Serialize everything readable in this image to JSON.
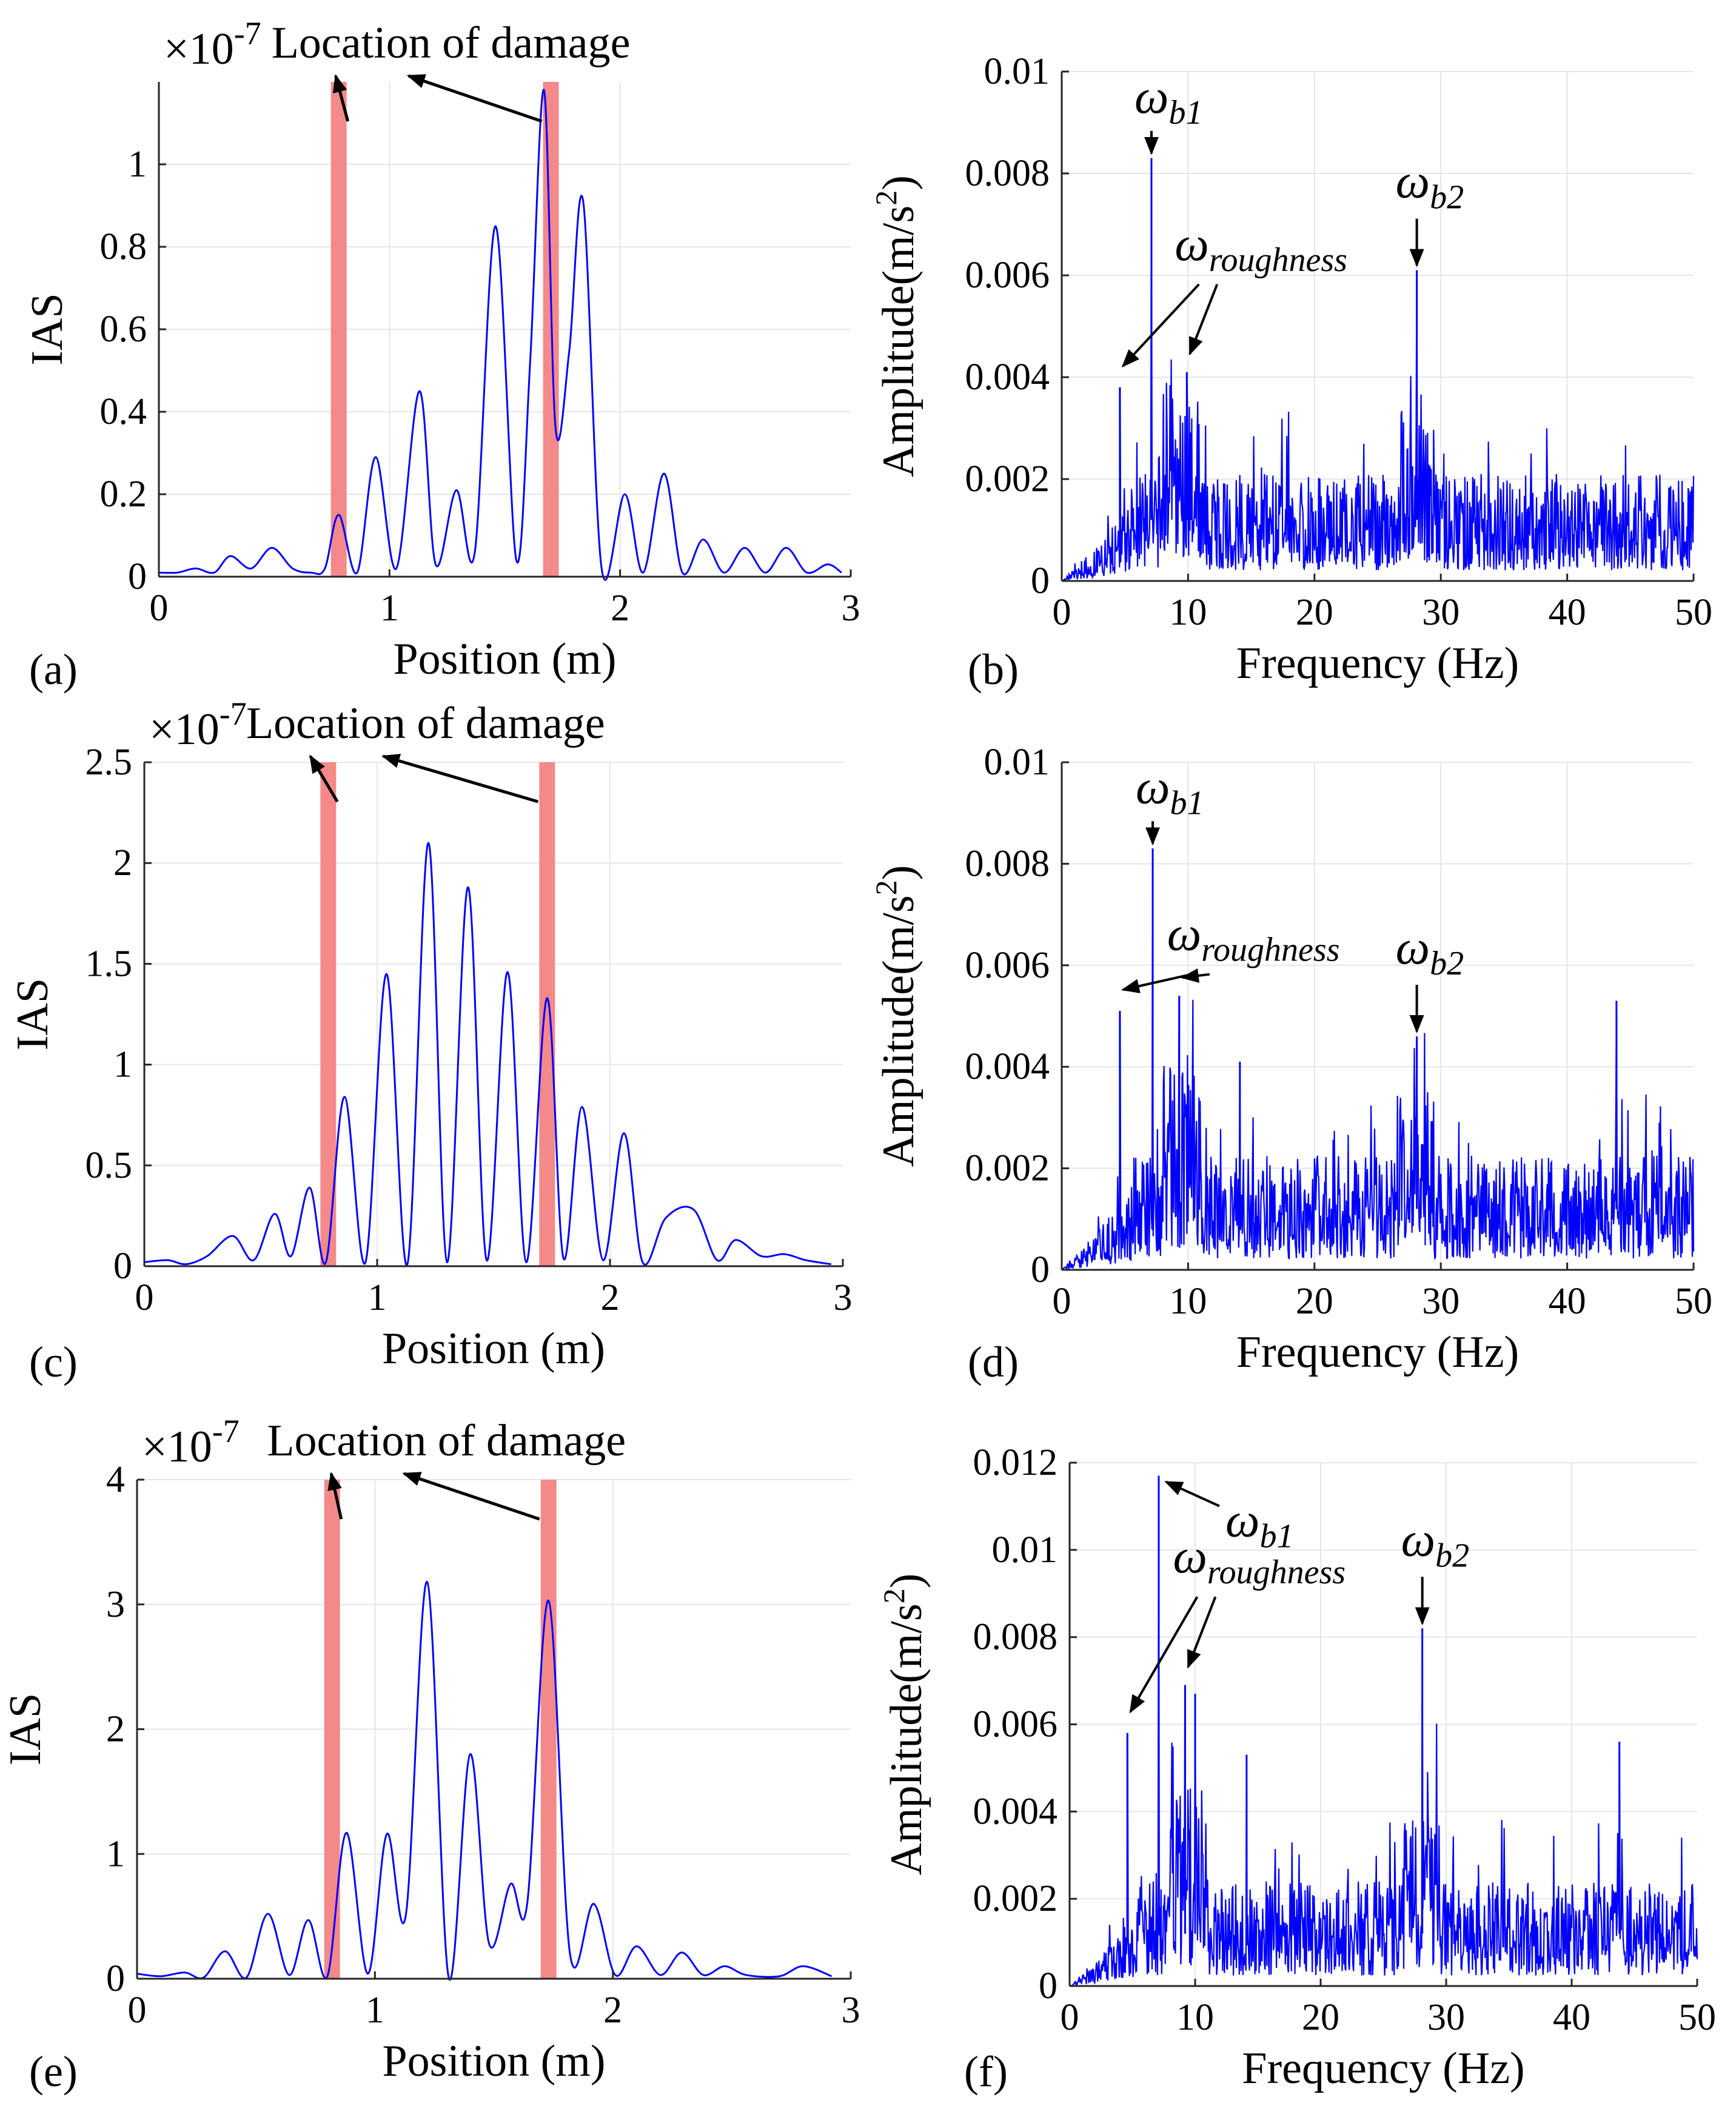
{
  "figure": {
    "panels": [
      "(a)",
      "(b)",
      "(c)",
      "(d)",
      "(e)",
      "(f)"
    ]
  },
  "chart_data": [
    {
      "panel": "(a)",
      "type": "line",
      "xlabel": "Position (m)",
      "ylabel": "IAS",
      "exponent_label": "×10",
      "exponent_power": "-7",
      "annotation": "Location of damage",
      "xlim": [
        0,
        3
      ],
      "ylim": [
        0,
        1.2
      ],
      "xticks": [
        "0",
        "1",
        "2",
        "3"
      ],
      "yticks": [
        "0",
        "0.2",
        "0.4",
        "0.6",
        "0.8",
        "1"
      ],
      "ytick_values": [
        0,
        0.2,
        0.4,
        0.6,
        0.8,
        1.0
      ],
      "damage_locations": [
        0.78,
        1.7
      ],
      "series_color": "#0000ff",
      "damage_color": "#f4898a",
      "x": [
        0,
        0.08,
        0.16,
        0.24,
        0.31,
        0.4,
        0.49,
        0.58,
        0.66,
        0.72,
        0.78,
        0.86,
        0.94,
        1.03,
        1.13,
        1.2,
        1.29,
        1.37,
        1.46,
        1.55,
        1.61,
        1.67,
        1.72,
        1.78,
        1.84,
        1.92,
        2.02,
        2.1,
        2.19,
        2.27,
        2.36,
        2.45,
        2.54,
        2.63,
        2.72,
        2.81,
        2.9,
        2.96
      ],
      "values": [
        0.01,
        0.01,
        0.02,
        0.01,
        0.05,
        0.02,
        0.07,
        0.02,
        0.01,
        0.02,
        0.15,
        0.01,
        0.29,
        0.02,
        0.45,
        0.03,
        0.21,
        0.06,
        0.85,
        0.04,
        0.52,
        1.18,
        0.36,
        0.55,
        0.91,
        0.02,
        0.2,
        0.01,
        0.25,
        0.01,
        0.09,
        0.01,
        0.07,
        0.01,
        0.07,
        0.01,
        0.03,
        0.01
      ]
    },
    {
      "panel": "(b)",
      "type": "line",
      "xlabel": "Frequency (Hz)",
      "ylabel": "Amplitude(m/s",
      "ylabel_power": "2",
      "ylabel_end": ")",
      "xlim": [
        0,
        50
      ],
      "ylim": [
        0,
        0.01
      ],
      "xticks": [
        "0",
        "10",
        "20",
        "30",
        "40",
        "50"
      ],
      "yticks": [
        "0",
        "0.002",
        "0.004",
        "0.006",
        "0.008",
        "0.01"
      ],
      "ytick_values": [
        0,
        0.002,
        0.004,
        0.006,
        0.008,
        0.01
      ],
      "series_color": "#0000ff",
      "peaks": [
        {
          "x": 4.6,
          "value": 0.0038
        },
        {
          "x": 7.1,
          "value": 0.0083
        },
        {
          "x": 9.9,
          "value": 0.0041
        },
        {
          "x": 28.1,
          "value": 0.0061
        }
      ],
      "baseline_level": 0.0014,
      "annotations": {
        "b1": {
          "symbol": "ω",
          "sub": "b1",
          "x": 7.1
        },
        "b2": {
          "symbol": "ω",
          "sub": "b2",
          "x": 28.1
        },
        "rough": {
          "symbol": "ω",
          "sub": "roughness",
          "targets": [
            4.6,
            9.9
          ]
        }
      }
    },
    {
      "panel": "(c)",
      "type": "line",
      "xlabel": "Position (m)",
      "ylabel": "IAS",
      "exponent_label": "×10",
      "exponent_power": "-7",
      "annotation": "Location of damage",
      "xlim": [
        0,
        3
      ],
      "ylim": [
        0,
        2.5
      ],
      "xticks": [
        "0",
        "1",
        "2",
        "3"
      ],
      "yticks": [
        "0",
        "0.5",
        "1",
        "1.5",
        "2",
        "2.5"
      ],
      "ytick_values": [
        0,
        0.5,
        1.0,
        1.5,
        2.0,
        2.5
      ],
      "damage_locations": [
        0.79,
        1.73
      ],
      "series_color": "#0000ff",
      "damage_color": "#f4898a",
      "x": [
        0,
        0.1,
        0.18,
        0.27,
        0.38,
        0.47,
        0.56,
        0.63,
        0.71,
        0.78,
        0.86,
        0.95,
        1.04,
        1.13,
        1.22,
        1.3,
        1.39,
        1.47,
        1.56,
        1.64,
        1.73,
        1.8,
        1.88,
        1.97,
        2.06,
        2.14,
        2.24,
        2.36,
        2.46,
        2.54,
        2.65,
        2.75,
        2.84,
        2.95
      ],
      "values": [
        0.02,
        0.03,
        0.01,
        0.05,
        0.15,
        0.03,
        0.26,
        0.05,
        0.39,
        0.02,
        0.84,
        0.02,
        1.45,
        0.01,
        2.1,
        0.02,
        1.88,
        0.03,
        1.46,
        0.02,
        1.33,
        0.04,
        0.79,
        0.03,
        0.66,
        0.02,
        0.24,
        0.28,
        0.03,
        0.13,
        0.05,
        0.06,
        0.03,
        0.01
      ]
    },
    {
      "panel": "(d)",
      "type": "line",
      "xlabel": "Frequency (Hz)",
      "ylabel": "Amplitude(m/s",
      "ylabel_power": "2",
      "ylabel_end": ")",
      "xlim": [
        0,
        50
      ],
      "ylim": [
        0,
        0.01
      ],
      "xticks": [
        "0",
        "10",
        "20",
        "30",
        "40",
        "50"
      ],
      "yticks": [
        "0",
        "0.002",
        "0.004",
        "0.006",
        "0.008",
        "0.01"
      ],
      "ytick_values": [
        0,
        0.002,
        0.004,
        0.006,
        0.008,
        0.01
      ],
      "series_color": "#0000ff",
      "peaks": [
        {
          "x": 4.6,
          "value": 0.0051
        },
        {
          "x": 7.2,
          "value": 0.0083
        },
        {
          "x": 9.3,
          "value": 0.0054
        },
        {
          "x": 14.1,
          "value": 0.0041
        },
        {
          "x": 28.1,
          "value": 0.0046
        },
        {
          "x": 43.9,
          "value": 0.0053
        }
      ],
      "baseline_level": 0.0015,
      "annotations": {
        "b1": {
          "symbol": "ω",
          "sub": "b1",
          "x": 7.2
        },
        "b2": {
          "symbol": "ω",
          "sub": "b2",
          "x": 28.1
        },
        "rough": {
          "symbol": "ω",
          "sub": "roughness",
          "targets": [
            4.6,
            9.3
          ]
        }
      }
    },
    {
      "panel": "(e)",
      "type": "line",
      "xlabel": "Position (m)",
      "ylabel": "IAS",
      "exponent_label": "×10",
      "exponent_power": "-7",
      "annotation": "Location of damage",
      "xlim": [
        0,
        3
      ],
      "ylim": [
        0,
        4
      ],
      "xticks": [
        "0",
        "1",
        "2",
        "3"
      ],
      "yticks": [
        "0",
        "1",
        "2",
        "3",
        "4"
      ],
      "ytick_values": [
        0,
        1,
        2,
        3,
        4
      ],
      "damage_locations": [
        0.82,
        1.73
      ],
      "series_color": "#0000ff",
      "damage_color": "#f4898a",
      "x": [
        0,
        0.1,
        0.2,
        0.28,
        0.37,
        0.46,
        0.55,
        0.64,
        0.72,
        0.8,
        0.88,
        0.97,
        1.05,
        1.13,
        1.22,
        1.31,
        1.4,
        1.48,
        1.57,
        1.64,
        1.73,
        1.82,
        1.92,
        2.01,
        2.1,
        2.2,
        2.29,
        2.38,
        2.47,
        2.56,
        2.7,
        2.8,
        2.92
      ],
      "values": [
        0.04,
        0.02,
        0.05,
        0.01,
        0.22,
        0.01,
        0.52,
        0.03,
        0.47,
        0.02,
        1.17,
        0.04,
        1.16,
        0.51,
        3.18,
        0.01,
        1.8,
        0.28,
        0.76,
        0.6,
        3.03,
        0.2,
        0.6,
        0.03,
        0.26,
        0.03,
        0.21,
        0.03,
        0.1,
        0.03,
        0.02,
        0.1,
        0.02
      ]
    },
    {
      "panel": "(f)",
      "type": "line",
      "xlabel": "Frequency (Hz)",
      "ylabel": "Amplitude(m/s",
      "ylabel_power": "2",
      "ylabel_end": ")",
      "xlim": [
        0,
        50
      ],
      "ylim": [
        0,
        0.012
      ],
      "xticks": [
        "0",
        "10",
        "20",
        "30",
        "40",
        "50"
      ],
      "yticks": [
        "0",
        "0.002",
        "0.004",
        "0.006",
        "0.008",
        "0.01",
        "0.012"
      ],
      "ytick_values": [
        0,
        0.002,
        0.004,
        0.006,
        0.008,
        0.01,
        0.012
      ],
      "series_color": "#0000ff",
      "peaks": [
        {
          "x": 4.6,
          "value": 0.0058
        },
        {
          "x": 7.1,
          "value": 0.0117
        },
        {
          "x": 9.2,
          "value": 0.0069
        },
        {
          "x": 10.0,
          "value": 0.0067
        },
        {
          "x": 14.1,
          "value": 0.0053
        },
        {
          "x": 28.1,
          "value": 0.0082
        },
        {
          "x": 43.8,
          "value": 0.0056
        }
      ],
      "baseline_level": 0.0016,
      "annotations": {
        "b1": {
          "symbol": "ω",
          "sub": "b1",
          "x": 7.1
        },
        "b2": {
          "symbol": "ω",
          "sub": "b2",
          "x": 28.1
        },
        "rough": {
          "symbol": "ω",
          "sub": "roughness",
          "targets": [
            4.6,
            9.2
          ]
        }
      }
    }
  ]
}
